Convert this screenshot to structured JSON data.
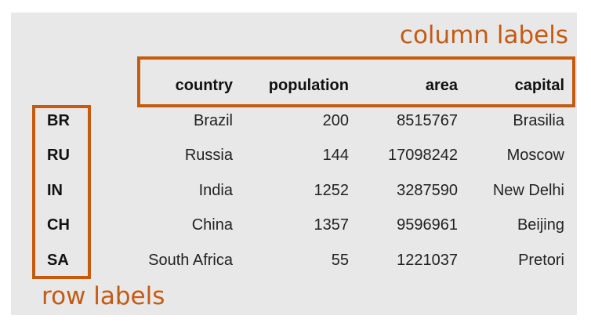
{
  "annotations": {
    "column_labels": "column labels",
    "row_labels": "row labels"
  },
  "table": {
    "columns": [
      "country",
      "population",
      "area",
      "capital"
    ],
    "rows": [
      {
        "label": "BR",
        "country": "Brazil",
        "population": "200",
        "area": "8515767",
        "capital": "Brasilia"
      },
      {
        "label": "RU",
        "country": "Russia",
        "population": "144",
        "area": "17098242",
        "capital": "Moscow"
      },
      {
        "label": "IN",
        "country": "India",
        "population": "1252",
        "area": "3287590",
        "capital": "New Delhi"
      },
      {
        "label": "CH",
        "country": "China",
        "population": "1357",
        "area": "9596961",
        "capital": "Beijing"
      },
      {
        "label": "SA",
        "country": "South Africa",
        "population": "55",
        "area": "1221037",
        "capital": "Pretori"
      }
    ]
  },
  "colors": {
    "accent": "#c55a11",
    "background": "#e8e8e8"
  }
}
